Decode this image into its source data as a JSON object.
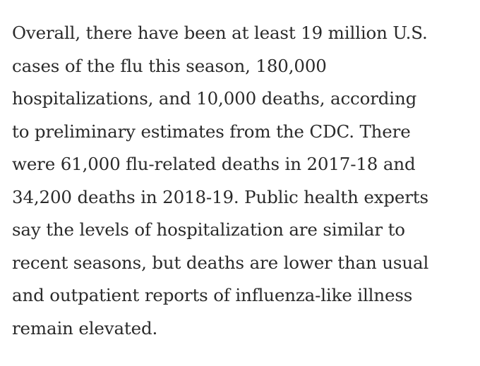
{
  "article": {
    "paragraph_lines": [
      "Overall, there have been at least 19 million U.S.",
      "cases of the flu this season, 180,000",
      "hospitalizations, and 10,000 deaths, according",
      "to preliminary estimates from the CDC. There",
      "were 61,000 flu-related deaths in 2017-18 and",
      "34,200 deaths in 2018-19. Public health experts",
      "say the levels of hospitalization are similar to",
      "recent seasons, but deaths are lower than usual",
      "and outpatient reports of influenza-like illness",
      "remain elevated."
    ]
  },
  "colors": {
    "text": "#2a2a2a",
    "background": "#ffffff"
  }
}
